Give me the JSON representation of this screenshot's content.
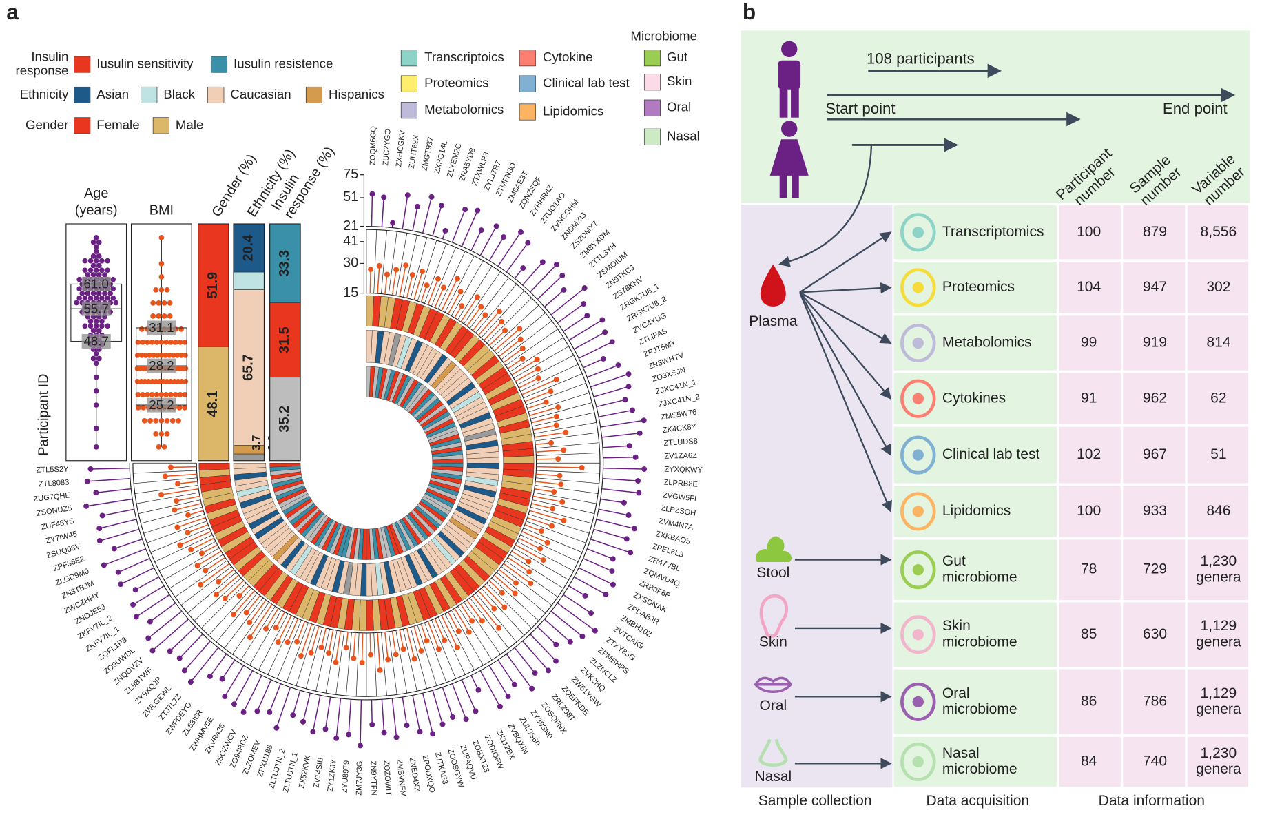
{
  "panel_a_label": "a",
  "chart_data": {
    "type": "circular",
    "y_label": "Participant ID",
    "legend": [
      {
        "title": [
          "Insulin",
          "response"
        ],
        "items": [
          {
            "name": "Iusulin sensitivity",
            "color": "#e8361f"
          },
          {
            "name": "Iusulin resistence",
            "color": "#3a90a8"
          }
        ]
      },
      {
        "title": [
          "Ethnicity"
        ],
        "items": [
          {
            "name": "Asian",
            "color": "#1d5a8a"
          },
          {
            "name": "Black",
            "color": "#bfe3e3"
          },
          {
            "name": "Caucasian",
            "color": "#f0cfb6"
          },
          {
            "name": "Hispanics",
            "color": "#d49a4e"
          }
        ]
      },
      {
        "title": [
          "Gender"
        ],
        "items": [
          {
            "name": "Female",
            "color": "#e8361f"
          },
          {
            "name": "Male",
            "color": "#dcb76a"
          }
        ]
      }
    ],
    "omics_legend": [
      {
        "name": "Transcriptoics",
        "color": "#8dd3c7"
      },
      {
        "name": "Proteomics",
        "color": "#ffed6f"
      },
      {
        "name": "Metabolomics",
        "color": "#bebada"
      },
      {
        "name": "Cytokine",
        "color": "#fb8072"
      },
      {
        "name": "Clinical lab test",
        "color": "#80b1d3"
      },
      {
        "name": "Lipidomics",
        "color": "#fdb462"
      }
    ],
    "microbiome_legend": {
      "title": "Microbiome",
      "items": [
        {
          "name": "Gut",
          "color": "#9acd52"
        },
        {
          "name": "Skin",
          "color": "#fcdbe8"
        },
        {
          "name": "Oral",
          "color": "#b27ac0"
        },
        {
          "name": "Nasal",
          "color": "#ccebc5"
        }
      ]
    },
    "boxes": [
      {
        "label": [
          "Age",
          "(years)"
        ],
        "color": "#6b2184",
        "quartiles": [
          48.7,
          55.7,
          61.0
        ],
        "quartile_labels": [
          "48.7",
          "55.7",
          "61.0"
        ]
      },
      {
        "label": [
          "BMI"
        ],
        "color": "#e8541c",
        "quartiles": [
          25.2,
          28.2,
          31.1
        ],
        "quartile_labels": [
          "25.2",
          "28.2",
          "31.1"
        ]
      }
    ],
    "bars": [
      {
        "label": [
          "Gender (%)"
        ],
        "values": [
          51.9,
          48.1
        ],
        "colors": [
          "#e8361f",
          "#dcb76a"
        ]
      },
      {
        "label": [
          "Ethnicity (%)"
        ],
        "values": [
          20.4,
          7.4,
          65.7,
          3.7,
          2.8
        ],
        "colors": [
          "#1d5a8a",
          "#bfe3e3",
          "#f0cfb6",
          "#d49a4e",
          "#9a9a9a"
        ]
      },
      {
        "label": [
          "Insulin",
          "response (%)"
        ],
        "values": [
          33.3,
          31.5,
          35.2
        ],
        "colors": [
          "#3a90a8",
          "#e8361f",
          "#bdbdbd"
        ]
      }
    ],
    "age_ylim": [
      21,
      75
    ],
    "age_yticks": [
      21,
      51,
      75
    ],
    "bmi_ylim": [
      15,
      41
    ],
    "bmi_yticks": [
      15,
      30,
      41
    ],
    "participants": {
      "ids": [
        "ZTL5S2Y",
        "ZTL8083",
        "ZUG7QHE",
        "ZSQNUZ5",
        "ZUF48YS",
        "ZY7IW45",
        "ZSUQ08V",
        "ZPF36E2",
        "ZLGD9M0",
        "ZN3TBJM",
        "ZWCZHHY",
        "ZNOJE53",
        "ZKFV7IL_2",
        "ZKFV7IL_1",
        "ZQFL1P3",
        "ZO9UWDL",
        "ZNQOVZV",
        "ZL9BTWF",
        "ZY9XQJP",
        "ZWLGEWL",
        "ZTJ7L7Z",
        "ZWFDEYO",
        "ZL63I6R",
        "ZWHMV5E",
        "ZKVR426",
        "ZSOZWGV",
        "ZO94RDZ",
        "ZLZOMEV",
        "ZPXU188",
        "ZLTUJTN_2",
        "ZLTUJTN_1",
        "ZX52KVK",
        "ZV14SIB",
        "ZY1ZKJY",
        "ZYU89T9",
        "ZM7JY3G",
        "ZN9YTFN",
        "ZOZOWIT",
        "ZMBVNFM",
        "ZNED4XZ",
        "ZPODXQO",
        "ZJTKAE3",
        "ZOOSGYW",
        "ZUPAQVU",
        "ZOBXT23",
        "ZODIOFW",
        "ZK112BX",
        "ZVBQXIN",
        "ZUL3S60",
        "ZY39SN0",
        "ZOSQFNX",
        "ZRLZ98T",
        "ZQEFRDE",
        "ZW61YGW",
        "ZVK2HQ",
        "ZLZNCLZ",
        "ZPMBHPS",
        "ZTXY83G",
        "ZVTCAK9",
        "ZMBH10Z",
        "ZPDABJR",
        "ZXSDNAK",
        "ZRB0F6P",
        "ZQMVU4Q",
        "ZR47VBL",
        "ZPEL6L3",
        "ZXKBAO5",
        "ZVM4N7A",
        "ZLPZSOH",
        "ZVGW5FI",
        "ZLPRB8E",
        "ZYXQKWY",
        "ZV1ZA6Z",
        "ZTLUDS8",
        "ZK4CK8Y",
        "ZMS5W76",
        "ZJXC41N_2",
        "ZJXC41N_1",
        "ZO3XSJN",
        "ZR3WHTV",
        "ZPJT5MY",
        "ZTLIFAS",
        "ZVC4YUG",
        "ZRGK7U8_2",
        "ZRGK7U8_1",
        "ZS78KHV",
        "ZN9TKCJ",
        "ZSMOIUM",
        "ZTTL3YH",
        "ZM8YXDM",
        "ZS2DMX7",
        "ZNDMXI3",
        "ZVNCGHM",
        "ZTUO1AO",
        "ZYHHR4Z",
        "ZQNZSQF",
        "ZM6AE3T",
        "ZTMFN3O",
        "ZYLJ7R7",
        "ZTXWLP3",
        "ZRA5YD8",
        "ZLYEM2C",
        "ZXSO14L",
        "ZMGT937",
        "ZUHT69X",
        "ZXHCGKV",
        "ZUC2YGO",
        "ZOQM6GQ"
      ],
      "age": [
        62,
        66,
        58,
        70,
        55,
        61,
        64,
        52,
        68,
        57,
        60,
        49,
        59,
        63,
        54,
        66,
        71,
        58,
        56,
        62,
        67,
        50,
        45,
        59,
        61,
        64,
        57,
        53,
        66,
        48,
        52,
        60,
        55,
        63,
        58,
        69,
        47,
        56,
        62,
        51,
        60,
        65,
        58,
        54,
        61,
        57,
        38,
        64,
        59,
        52,
        66,
        55,
        62,
        60,
        48,
        57,
        63,
        70,
        56,
        41,
        59,
        61,
        54,
        50,
        65,
        57,
        62,
        53,
        46,
        60,
        58,
        64,
        55,
        49,
        61,
        67,
        57,
        52,
        59,
        63,
        56,
        44,
        60,
        58,
        62,
        51,
        55,
        66,
        48,
        57,
        61,
        53,
        35,
        59,
        64,
        50,
        56,
        45,
        62,
        58,
        30,
        54,
        60,
        47,
        57,
        26,
        52,
        55
      ],
      "bmi": [
        28,
        31,
        25,
        34,
        27,
        29,
        23,
        30,
        26,
        32,
        28,
        24,
        29,
        27,
        33,
        25,
        30,
        28,
        22,
        31,
        26,
        29,
        35,
        27,
        24,
        30,
        28,
        26,
        32,
        29,
        25,
        27,
        31,
        23,
        28,
        30,
        26,
        34,
        29,
        27,
        25,
        31,
        28,
        24,
        30,
        27,
        33,
        26,
        29,
        25,
        28,
        36,
        27,
        30,
        24,
        29,
        26,
        32,
        28,
        25,
        31,
        27,
        29,
        24,
        28,
        33,
        26,
        30,
        25,
        28,
        27,
        38,
        26,
        29,
        23,
        31,
        27,
        28,
        30,
        25,
        29,
        34,
        26,
        28,
        30,
        24,
        27,
        29,
        32,
        26,
        28,
        31,
        25,
        27,
        30,
        22,
        28,
        33,
        26,
        29,
        24,
        30,
        27,
        31,
        28,
        25,
        29,
        27
      ],
      "gender": [
        0,
        1,
        0,
        0,
        1,
        1,
        0,
        1,
        0,
        0,
        1,
        0,
        1,
        0,
        0,
        1,
        0,
        1,
        1,
        0,
        0,
        1,
        0,
        1,
        0,
        0,
        1,
        1,
        0,
        1,
        0,
        0,
        1,
        0,
        1,
        1,
        0,
        1,
        0,
        0,
        1,
        0,
        1,
        1,
        0,
        0,
        1,
        0,
        1,
        0,
        1,
        0,
        0,
        1,
        0,
        1,
        1,
        0,
        0,
        1,
        0,
        1,
        1,
        0,
        0,
        1,
        0,
        0,
        1,
        1,
        0,
        0,
        1,
        0,
        0,
        1,
        1,
        0,
        1,
        0,
        0,
        1,
        0,
        1,
        0,
        0,
        1,
        0,
        1,
        1,
        0,
        1,
        0,
        0,
        1,
        0,
        1,
        0,
        0,
        1,
        0,
        1,
        0,
        0,
        1,
        1,
        0,
        1
      ],
      "ethnicity": [
        2,
        2,
        0,
        2,
        2,
        1,
        2,
        0,
        2,
        2,
        2,
        0,
        2,
        0,
        2,
        2,
        2,
        2,
        3,
        2,
        0,
        2,
        1,
        2,
        2,
        2,
        0,
        2,
        2,
        2,
        0,
        2,
        4,
        2,
        2,
        0,
        2,
        2,
        1,
        2,
        0,
        2,
        2,
        2,
        2,
        0,
        2,
        2,
        0,
        2,
        2,
        2,
        1,
        2,
        0,
        2,
        2,
        2,
        3,
        2,
        2,
        0,
        2,
        2,
        2,
        2,
        0,
        2,
        1,
        2,
        2,
        0,
        2,
        2,
        2,
        0,
        2,
        4,
        2,
        2,
        0,
        2,
        2,
        2,
        1,
        2,
        0,
        2,
        2,
        2,
        2,
        3,
        2,
        0,
        2,
        2,
        2,
        2,
        0,
        2,
        1,
        2,
        4,
        2,
        2,
        0,
        2,
        2
      ],
      "insulin": [
        1,
        0,
        2,
        1,
        2,
        0,
        1,
        2,
        0,
        1,
        2,
        2,
        0,
        1,
        2,
        0,
        1,
        2,
        1,
        0,
        2,
        2,
        1,
        0,
        2,
        1,
        0,
        2,
        1,
        0,
        0,
        2,
        1,
        2,
        0,
        1,
        1,
        2,
        0,
        1,
        2,
        2,
        0,
        1,
        1,
        2,
        0,
        2,
        0,
        1,
        2,
        0,
        1,
        2,
        1,
        0,
        2,
        1,
        0,
        2,
        2,
        0,
        1,
        2,
        0,
        1,
        2,
        1,
        0,
        2,
        1,
        0,
        1,
        2,
        0,
        1,
        2,
        0,
        1,
        2,
        2,
        0,
        1,
        2,
        0,
        1,
        2,
        1,
        0,
        2,
        0,
        1,
        2,
        2,
        0,
        1,
        2,
        0,
        1,
        2,
        1,
        0,
        2,
        1,
        0,
        2,
        1,
        2
      ]
    }
  },
  "panel_b": {
    "label": "b",
    "participants": "108 participants",
    "start": "Start point",
    "end": "End point",
    "columns": [
      [
        "Participant",
        "number"
      ],
      [
        "Sample",
        "number"
      ],
      [
        "Variable",
        "number"
      ]
    ],
    "sources": [
      "Plasma",
      "Stool",
      "Skin",
      "Oral",
      "Nasal"
    ],
    "rows": [
      {
        "name": [
          "Transcriptomics"
        ],
        "cells": [
          "100",
          "879",
          [
            "8,556"
          ]
        ]
      },
      {
        "name": [
          "Proteomics"
        ],
        "cells": [
          "104",
          "947",
          [
            "302"
          ]
        ]
      },
      {
        "name": [
          "Metabolomics"
        ],
        "cells": [
          "99",
          "919",
          [
            "814"
          ]
        ]
      },
      {
        "name": [
          "Cytokines"
        ],
        "cells": [
          "91",
          "962",
          [
            "62"
          ]
        ]
      },
      {
        "name": [
          "Clinical lab test"
        ],
        "cells": [
          "102",
          "967",
          [
            "51"
          ]
        ]
      },
      {
        "name": [
          "Lipidomics"
        ],
        "cells": [
          "100",
          "933",
          [
            "846"
          ]
        ]
      },
      {
        "name": [
          "Gut",
          "microbiome"
        ],
        "cells": [
          "78",
          "729",
          [
            "1,230",
            "genera"
          ]
        ]
      },
      {
        "name": [
          "Skin",
          "microbiome"
        ],
        "cells": [
          "85",
          "630",
          [
            "1,129",
            "genera"
          ]
        ]
      },
      {
        "name": [
          "Oral",
          "microbiome"
        ],
        "cells": [
          "86",
          "786",
          [
            "1,129",
            "genera"
          ]
        ]
      },
      {
        "name": [
          "Nasal",
          "microbiome"
        ],
        "cells": [
          "84",
          "740",
          [
            "1,230",
            "genera"
          ]
        ]
      }
    ],
    "footer": [
      "Sample collection",
      "Data acquisition",
      "Data information"
    ]
  }
}
